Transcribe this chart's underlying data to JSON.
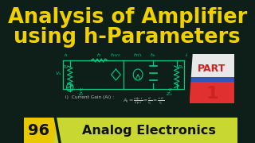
{
  "bg_color": "#0d1f18",
  "title_line1": "Analysis of Amplifier",
  "title_line2": "using h-Parameters",
  "title_color": "#f0d000",
  "title_fontsize": 18.5,
  "badge_color_yellow": "#e8c800",
  "badge_color_lime": "#c8d830",
  "badge_num": "96",
  "badge_text": "Analog Electronics",
  "badge_text_color": "#111111",
  "circuit_color": "#00cc88",
  "formula_color": "#bbbbbb",
  "part_white": "#e8e8e8",
  "part_red": "#e03030",
  "part_blue": "#3355bb"
}
